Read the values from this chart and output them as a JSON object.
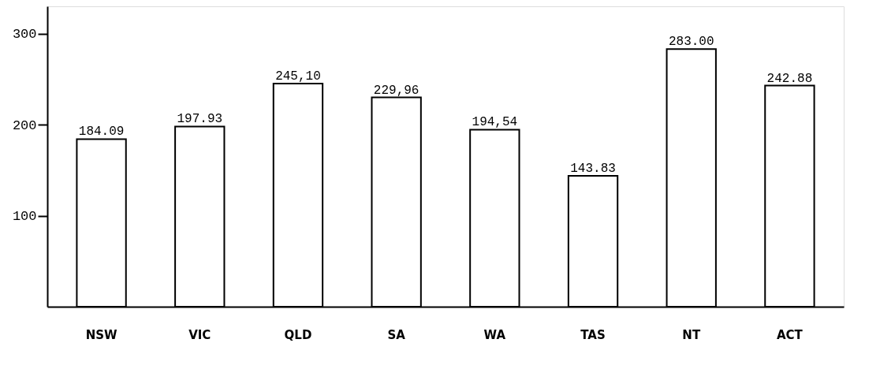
{
  "chart_data": {
    "type": "bar",
    "categories": [
      "NSW",
      "VIC",
      "QLD",
      "SA",
      "WA",
      "TAS",
      "NT",
      "ACT"
    ],
    "values": [
      184.09,
      197.93,
      245.1,
      229.96,
      194.54,
      143.83,
      283.0,
      242.88
    ],
    "value_labels": [
      "184.09",
      "197.93",
      "245,10",
      "229,96",
      "194,54",
      "143.83",
      "283.00",
      "242.88"
    ],
    "color": "#ffffff",
    "ylim": [
      0,
      330
    ],
    "yticks": [
      100,
      200,
      300
    ],
    "grid": false
  }
}
